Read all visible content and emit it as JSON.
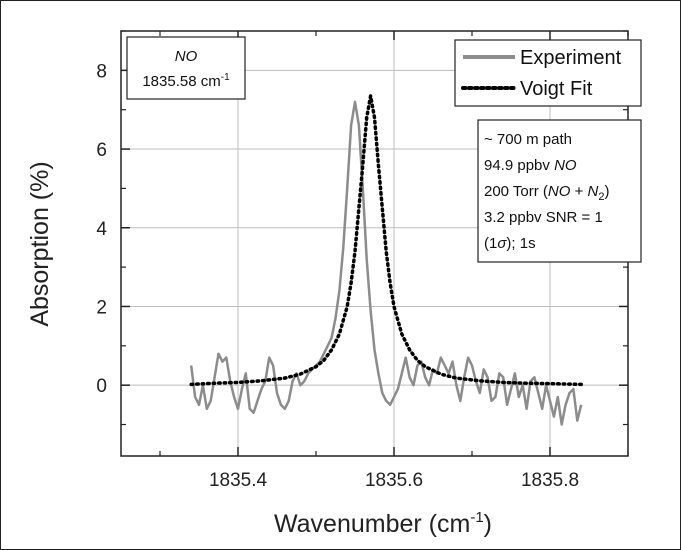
{
  "chart_data": {
    "type": "line",
    "xlabel": "Wavenumber (cm",
    "xlabel_sup": "-1",
    "xlabel_close": ")",
    "ylabel": "Absorption (%)",
    "xlim": [
      1835.25,
      1835.9
    ],
    "ylim": [
      -1.8,
      9
    ],
    "x_ticks": [
      1835.4,
      1835.6,
      1835.8
    ],
    "x_tick_labels": [
      "1835.4",
      "1835.6",
      "1835.8"
    ],
    "y_ticks": [
      0,
      2,
      4,
      6,
      8
    ],
    "y_tick_labels": [
      "0",
      "2",
      "4",
      "6",
      "8"
    ],
    "grid": true,
    "legend_position": "top-right",
    "series": [
      {
        "name": "Experiment",
        "style": "solid",
        "color": "#8c8c8c",
        "x": [
          1835.34,
          1835.345,
          1835.35,
          1835.355,
          1835.36,
          1835.365,
          1835.37,
          1835.375,
          1835.38,
          1835.385,
          1835.39,
          1835.395,
          1835.4,
          1835.405,
          1835.41,
          1835.415,
          1835.42,
          1835.425,
          1835.43,
          1835.435,
          1835.44,
          1835.445,
          1835.45,
          1835.455,
          1835.46,
          1835.465,
          1835.47,
          1835.475,
          1835.48,
          1835.485,
          1835.49,
          1835.495,
          1835.5,
          1835.505,
          1835.51,
          1835.515,
          1835.52,
          1835.525,
          1835.53,
          1835.535,
          1835.54,
          1835.545,
          1835.55,
          1835.555,
          1835.56,
          1835.565,
          1835.57,
          1835.575,
          1835.58,
          1835.585,
          1835.59,
          1835.595,
          1835.6,
          1835.605,
          1835.61,
          1835.615,
          1835.62,
          1835.625,
          1835.63,
          1835.635,
          1835.64,
          1835.645,
          1835.65,
          1835.655,
          1835.66,
          1835.665,
          1835.67,
          1835.675,
          1835.68,
          1835.685,
          1835.69,
          1835.695,
          1835.7,
          1835.705,
          1835.71,
          1835.715,
          1835.72,
          1835.725,
          1835.73,
          1835.735,
          1835.74,
          1835.745,
          1835.75,
          1835.755,
          1835.76,
          1835.765,
          1835.77,
          1835.775,
          1835.78,
          1835.785,
          1835.79,
          1835.795,
          1835.8,
          1835.805,
          1835.81,
          1835.815,
          1835.82,
          1835.825,
          1835.83,
          1835.835,
          1835.84
        ],
        "y": [
          0.5,
          -0.3,
          -0.5,
          0.0,
          -0.6,
          -0.4,
          0.2,
          0.8,
          0.6,
          0.7,
          0.1,
          -0.3,
          -0.6,
          -0.1,
          0.3,
          -0.6,
          -0.7,
          -0.4,
          -0.1,
          0.1,
          0.7,
          0.5,
          -0.2,
          -0.5,
          -0.6,
          -0.4,
          0.1,
          0.3,
          0.0,
          0.1,
          0.3,
          0.4,
          0.5,
          0.6,
          0.8,
          1.0,
          1.2,
          1.7,
          2.4,
          3.5,
          5.0,
          6.6,
          7.2,
          6.6,
          5.0,
          3.2,
          1.9,
          0.9,
          0.3,
          -0.2,
          -0.4,
          -0.5,
          -0.3,
          -0.1,
          0.3,
          0.7,
          0.2,
          0.0,
          0.5,
          0.6,
          0.2,
          0.0,
          0.4,
          0.3,
          0.7,
          0.5,
          0.3,
          0.6,
          0.0,
          -0.4,
          0.2,
          0.7,
          0.5,
          0.1,
          -0.2,
          0.4,
          0.2,
          -0.4,
          -0.3,
          0.3,
          0.2,
          -0.5,
          -0.1,
          0.3,
          -0.3,
          0.0,
          -0.6,
          0.1,
          0.2,
          -0.2,
          -0.6,
          0.0,
          -0.4,
          -0.8,
          -0.3,
          -1.0,
          -0.5,
          -0.2,
          -0.1,
          -0.9,
          -0.5
        ]
      },
      {
        "name": "Voigt Fit",
        "style": "dotted",
        "color": "#000000",
        "center": 1835.57,
        "x": [
          1835.34,
          1835.37,
          1835.4,
          1835.43,
          1835.46,
          1835.48,
          1835.5,
          1835.51,
          1835.52,
          1835.53,
          1835.54,
          1835.545,
          1835.55,
          1835.555,
          1835.56,
          1835.565,
          1835.57,
          1835.575,
          1835.58,
          1835.585,
          1835.59,
          1835.595,
          1835.6,
          1835.61,
          1835.62,
          1835.63,
          1835.64,
          1835.66,
          1835.68,
          1835.71,
          1835.74,
          1835.77,
          1835.8,
          1835.84
        ],
        "y": [
          0.02,
          0.05,
          0.07,
          0.11,
          0.18,
          0.28,
          0.47,
          0.63,
          0.9,
          1.3,
          2.0,
          2.6,
          3.4,
          4.5,
          5.6,
          6.8,
          7.35,
          6.8,
          5.6,
          4.5,
          3.4,
          2.6,
          2.0,
          1.3,
          0.9,
          0.63,
          0.47,
          0.28,
          0.18,
          0.11,
          0.07,
          0.05,
          0.04,
          0.02
        ]
      }
    ],
    "annotations": {
      "species_box": {
        "line1": "NO",
        "line2_value": "1835.58 cm",
        "line2_sup": "-1"
      },
      "info_box": {
        "line1": "~ 700 m path",
        "line2_value": "94.9 ppbv ",
        "line2_species": "NO",
        "line3_prefix": "200 Torr (",
        "line3_species": "NO",
        "line3_plus": " + ",
        "line3_n": "N",
        "line3_sub": "2",
        "line3_close": ")",
        "line4": "3.2 ppbv SNR = 1",
        "line5_open": "(1",
        "line5_sigma": "σ",
        "line5_rest": "); 1s"
      }
    }
  }
}
